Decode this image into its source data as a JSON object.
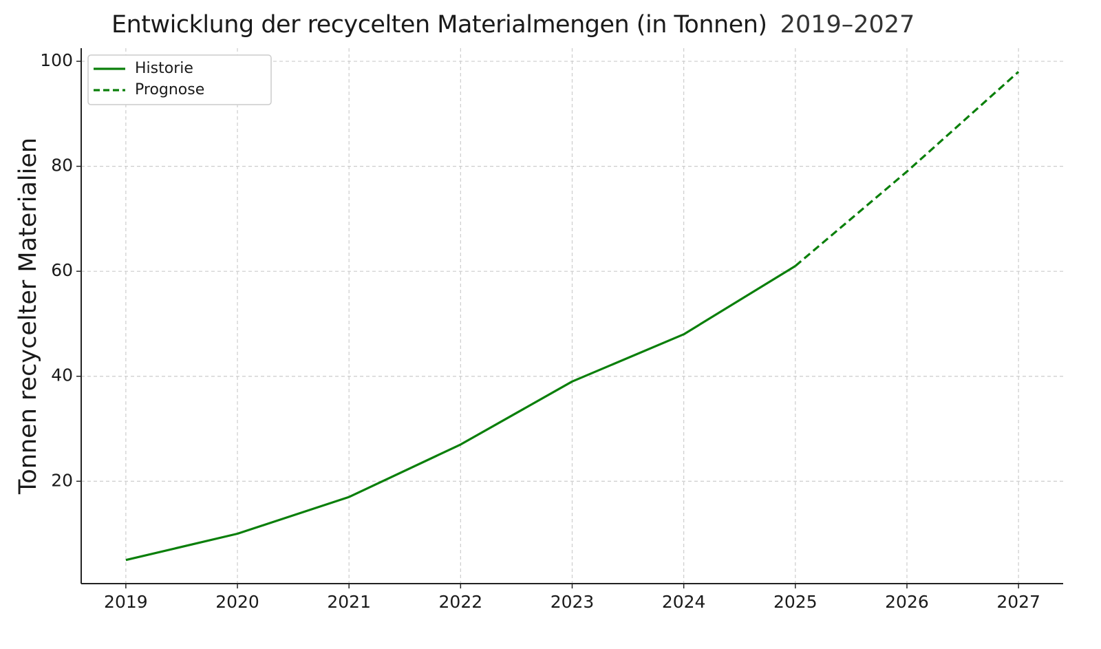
{
  "chart_data": {
    "type": "line",
    "title": "Entwicklung der recycelten Materialmengen (in Tonnen)",
    "subtitle": "2019–2027",
    "xlabel": "",
    "ylabel": "Tonnen recycelter Materialien",
    "x": [
      2019,
      2020,
      2021,
      2022,
      2023,
      2024,
      2025,
      2026,
      2027
    ],
    "xlim": [
      2018.6,
      2027.4
    ],
    "ylim": [
      0.5,
      102.5
    ],
    "yticks": [
      20,
      40,
      60,
      80,
      100
    ],
    "xticks": [
      2019,
      2020,
      2021,
      2022,
      2023,
      2024,
      2025,
      2026,
      2027
    ],
    "grid": true,
    "legend_position": "top-left",
    "series": [
      {
        "name": "Historie",
        "style": "solid",
        "color": "#0a7f0a",
        "x": [
          2019,
          2020,
          2021,
          2022,
          2023,
          2024,
          2025
        ],
        "values": [
          5,
          10,
          17,
          27,
          39,
          48,
          61
        ]
      },
      {
        "name": "Prognose",
        "style": "dashed",
        "color": "#0a7f0a",
        "x": [
          2025,
          2026,
          2027
        ],
        "values": [
          61,
          79,
          98
        ]
      }
    ]
  }
}
